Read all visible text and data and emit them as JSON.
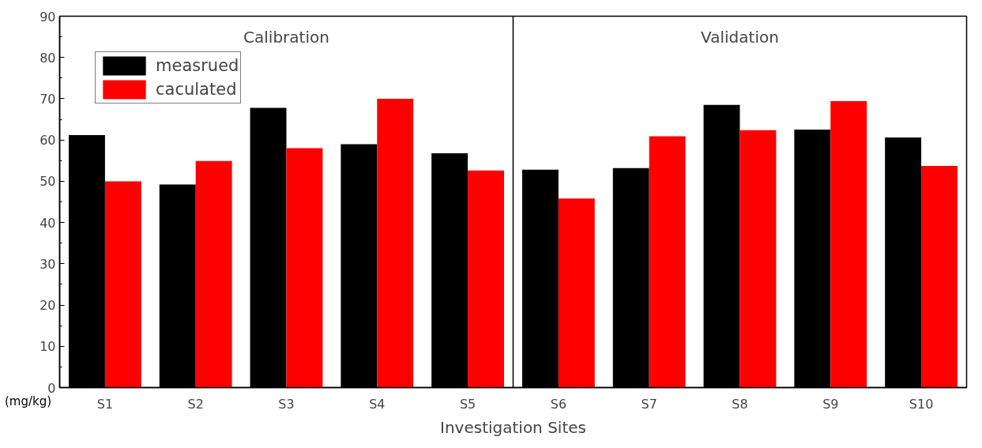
{
  "chart_data": {
    "type": "bar",
    "xlabel": "Investigation Sites",
    "ylabel": "(mg/kg)",
    "categories": [
      "S1",
      "S2",
      "S3",
      "S4",
      "S5",
      "S6",
      "S7",
      "S8",
      "S9",
      "S10"
    ],
    "series": [
      {
        "name": "measrued",
        "color": "#000000",
        "values": [
          61.2,
          49.2,
          67.8,
          59.0,
          56.8,
          52.8,
          53.2,
          68.5,
          62.5,
          60.6
        ]
      },
      {
        "name": "caculated",
        "color": "#ff0000",
        "values": [
          50.0,
          54.9,
          58.0,
          70.0,
          52.6,
          45.8,
          60.9,
          62.4,
          69.4,
          53.7
        ]
      }
    ],
    "ylim": [
      0,
      90
    ],
    "yticks": [
      0,
      10,
      20,
      30,
      40,
      50,
      60,
      70,
      80,
      90
    ],
    "annotations": [
      "Calibration",
      "Validation"
    ],
    "legend": "top left",
    "grid": false
  }
}
